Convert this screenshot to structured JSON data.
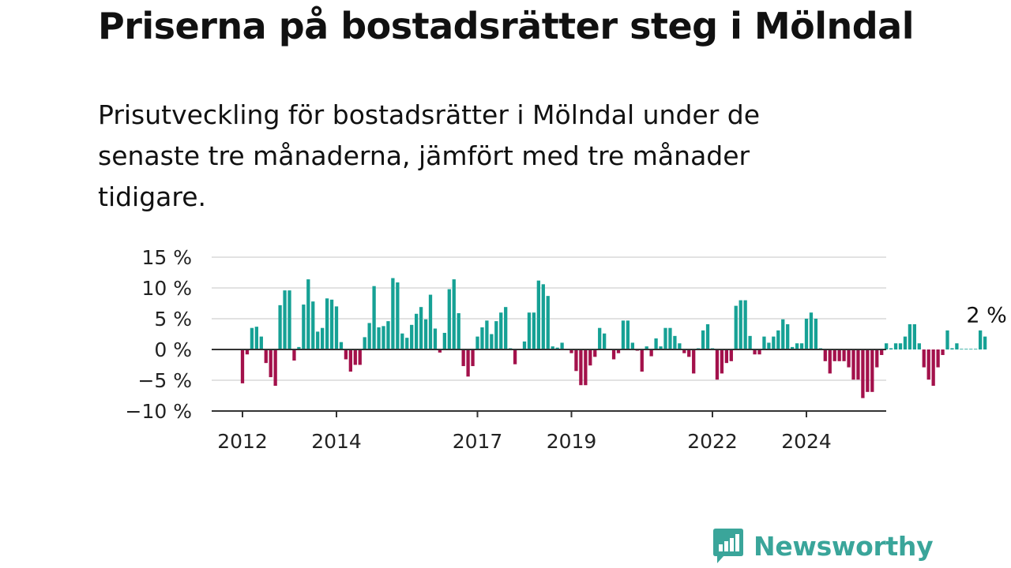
{
  "title": "Priserna på bostadsrätter steg i Mölndal",
  "subtitle": "Prisutveckling för bostadsrätter i Mölndal under de senaste tre månaderna, jämfört med tre månader tidigare.",
  "brand": {
    "name": "Newsworthy",
    "icon": "bar-chart-speech-bubble-icon",
    "color": "#3aa59a"
  },
  "colors": {
    "positive": "#16a195",
    "negative": "#a3114b",
    "grid": "#d9d9d9",
    "axis": "#333333"
  },
  "chart_data": {
    "type": "bar",
    "title": "Priserna på bostadsrätter steg i Mölndal",
    "ylabel": "",
    "ylim": [
      -10,
      15
    ],
    "y_ticks": [
      {
        "value": 15,
        "label": "15 %"
      },
      {
        "value": 10,
        "label": "10 %"
      },
      {
        "value": 5,
        "label": "5 %"
      },
      {
        "value": 0,
        "label": "0 %"
      },
      {
        "value": -5,
        "label": "−5 %"
      },
      {
        "value": -10,
        "label": "−10 %"
      }
    ],
    "x_ticks": [
      {
        "month": 0,
        "label": "2012"
      },
      {
        "month": 20,
        "label": "2014"
      },
      {
        "month": 50,
        "label": "2017"
      },
      {
        "month": 70,
        "label": "2019"
      },
      {
        "month": 100,
        "label": "2022"
      },
      {
        "month": 120,
        "label": "2024"
      }
    ],
    "start": "2012-01",
    "values": [
      -5.5,
      -0.8,
      3.5,
      3.7,
      2.1,
      -2.2,
      -4.5,
      -5.9,
      7.2,
      9.6,
      9.6,
      -1.8,
      0.4,
      7.3,
      11.4,
      7.8,
      2.9,
      3.5,
      8.3,
      8.1,
      7.0,
      1.2,
      -1.6,
      -3.6,
      -2.5,
      -2.5,
      2.0,
      4.3,
      10.3,
      3.6,
      3.8,
      4.6,
      11.6,
      10.9,
      2.6,
      1.9,
      4.0,
      5.8,
      6.9,
      4.9,
      8.9,
      3.4,
      -0.5,
      2.7,
      9.8,
      11.4,
      5.9,
      -2.7,
      -4.4,
      -2.7,
      2.1,
      3.6,
      4.7,
      2.5,
      4.6,
      6.0,
      6.9,
      0.2,
      -2.4,
      0.1,
      1.3,
      6.0,
      6.0,
      11.2,
      10.6,
      8.7,
      0.5,
      0.3,
      1.1,
      0.1,
      -0.6,
      -3.5,
      -5.8,
      -5.8,
      -2.6,
      -1.2,
      3.5,
      2.6,
      0.1,
      -1.6,
      -0.6,
      4.7,
      4.7,
      1.1,
      -0.2,
      -3.6,
      0.5,
      -1.1,
      1.8,
      0.5,
      3.5,
      3.5,
      2.2,
      1.0,
      -0.6,
      -1.2,
      -3.9,
      0.2,
      3.1,
      4.1,
      0.2,
      -4.9,
      -3.9,
      -2.2,
      -1.9,
      7.1,
      8.0,
      8.0,
      2.2,
      -0.8,
      -0.8,
      2.1,
      1.1,
      2.1,
      3.1,
      4.9,
      4.1,
      0.4,
      1.0,
      1.0,
      5.0,
      6.0,
      5.0,
      0.2,
      -1.9,
      -3.9,
      -1.9,
      -1.9,
      -1.9,
      -2.9,
      -4.9,
      -4.9,
      -7.9,
      -6.9,
      -6.9,
      -2.9,
      -0.9,
      1.0,
      0.2,
      1.0,
      1.0,
      2.1,
      4.1,
      4.1,
      1.0,
      -2.9,
      -4.9,
      -5.9,
      -2.9,
      -0.9,
      3.1,
      0.2,
      1.0,
      0.1,
      0.1,
      0.1,
      0.1,
      3.1,
      2.1
    ],
    "annotations": [
      {
        "index": 158,
        "label": "2 %"
      }
    ]
  }
}
